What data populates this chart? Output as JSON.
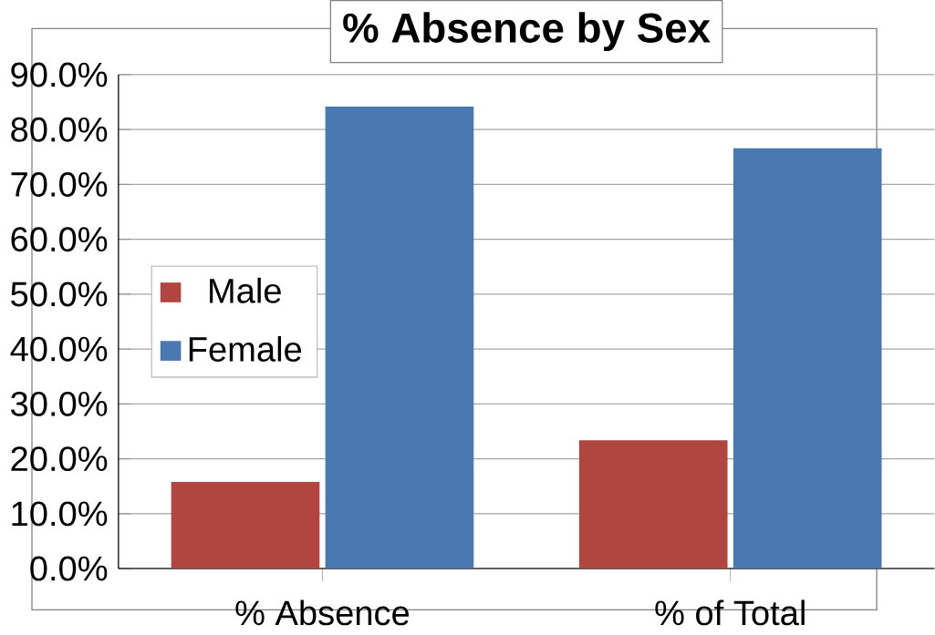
{
  "chart_data": {
    "type": "bar",
    "title": "% Absence by Sex",
    "categories": [
      "% Absence",
      "% of Total"
    ],
    "series": [
      {
        "name": "Male",
        "color": "#b0463f",
        "values": [
          15.8,
          23.4
        ]
      },
      {
        "name": "Female",
        "color": "#4a78b0",
        "values": [
          84.2,
          76.6
        ]
      }
    ],
    "ylim": [
      0,
      90
    ],
    "yticks": [
      {
        "value": 0,
        "label": "0.0%"
      },
      {
        "value": 10,
        "label": "10.0%"
      },
      {
        "value": 20,
        "label": "20.0%"
      },
      {
        "value": 30,
        "label": "30.0%"
      },
      {
        "value": 40,
        "label": "40.0%"
      },
      {
        "value": 50,
        "label": "50.0%"
      },
      {
        "value": 60,
        "label": "60.0%"
      },
      {
        "value": 70,
        "label": "70.0%"
      },
      {
        "value": 80,
        "label": "80.0%"
      },
      {
        "value": 90,
        "label": "90.0%"
      }
    ],
    "grid": "y",
    "legend": "left"
  }
}
